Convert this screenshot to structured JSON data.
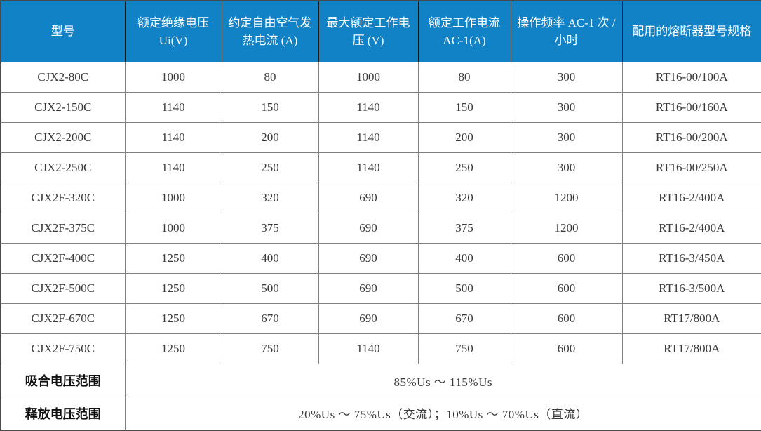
{
  "table": {
    "columns": [
      "型号",
      "额定绝缘电压 Ui(V)",
      "约定自由空气发热电流 (A)",
      "最大额定工作电压 (V)",
      "额定工作电流 AC-1(A)",
      "操作频率 AC-1 次 / 小时",
      "配用的熔断器型号规格"
    ],
    "rows": [
      [
        "CJX2-80C",
        "1000",
        "80",
        "1000",
        "80",
        "300",
        "RT16-00/100A"
      ],
      [
        "CJX2-150C",
        "1140",
        "150",
        "1140",
        "150",
        "300",
        "RT16-00/160A"
      ],
      [
        "CJX2-200C",
        "1140",
        "200",
        "1140",
        "200",
        "300",
        "RT16-00/200A"
      ],
      [
        "CJX2-250C",
        "1140",
        "250",
        "1140",
        "250",
        "300",
        "RT16-00/250A"
      ],
      [
        "CJX2F-320C",
        "1000",
        "320",
        "690",
        "320",
        "1200",
        "RT16-2/400A"
      ],
      [
        "CJX2F-375C",
        "1000",
        "375",
        "690",
        "375",
        "1200",
        "RT16-2/400A"
      ],
      [
        "CJX2F-400C",
        "1250",
        "400",
        "690",
        "400",
        "600",
        "RT16-3/450A"
      ],
      [
        "CJX2F-500C",
        "1250",
        "500",
        "690",
        "500",
        "600",
        "RT16-3/500A"
      ],
      [
        "CJX2F-670C",
        "1250",
        "670",
        "690",
        "670",
        "600",
        "RT17/800A"
      ],
      [
        "CJX2F-750C",
        "1250",
        "750",
        "1140",
        "750",
        "600",
        "RT17/800A"
      ]
    ],
    "footer_rows": [
      {
        "label": "吸合电压范围",
        "value": "85%Us ～ 115%Us"
      },
      {
        "label": "释放电压范围",
        "value": "20%Us ～ 75%Us（交流）；10%Us ～ 70%Us（直流）"
      }
    ],
    "colors": {
      "header_bg": "#1182C6",
      "header_text": "#FFFFFF",
      "body_text": "#3A3A3A",
      "inner_border": "#808080",
      "outer_border": "#4A4A4A",
      "header_border": "#1A1A1A"
    }
  }
}
